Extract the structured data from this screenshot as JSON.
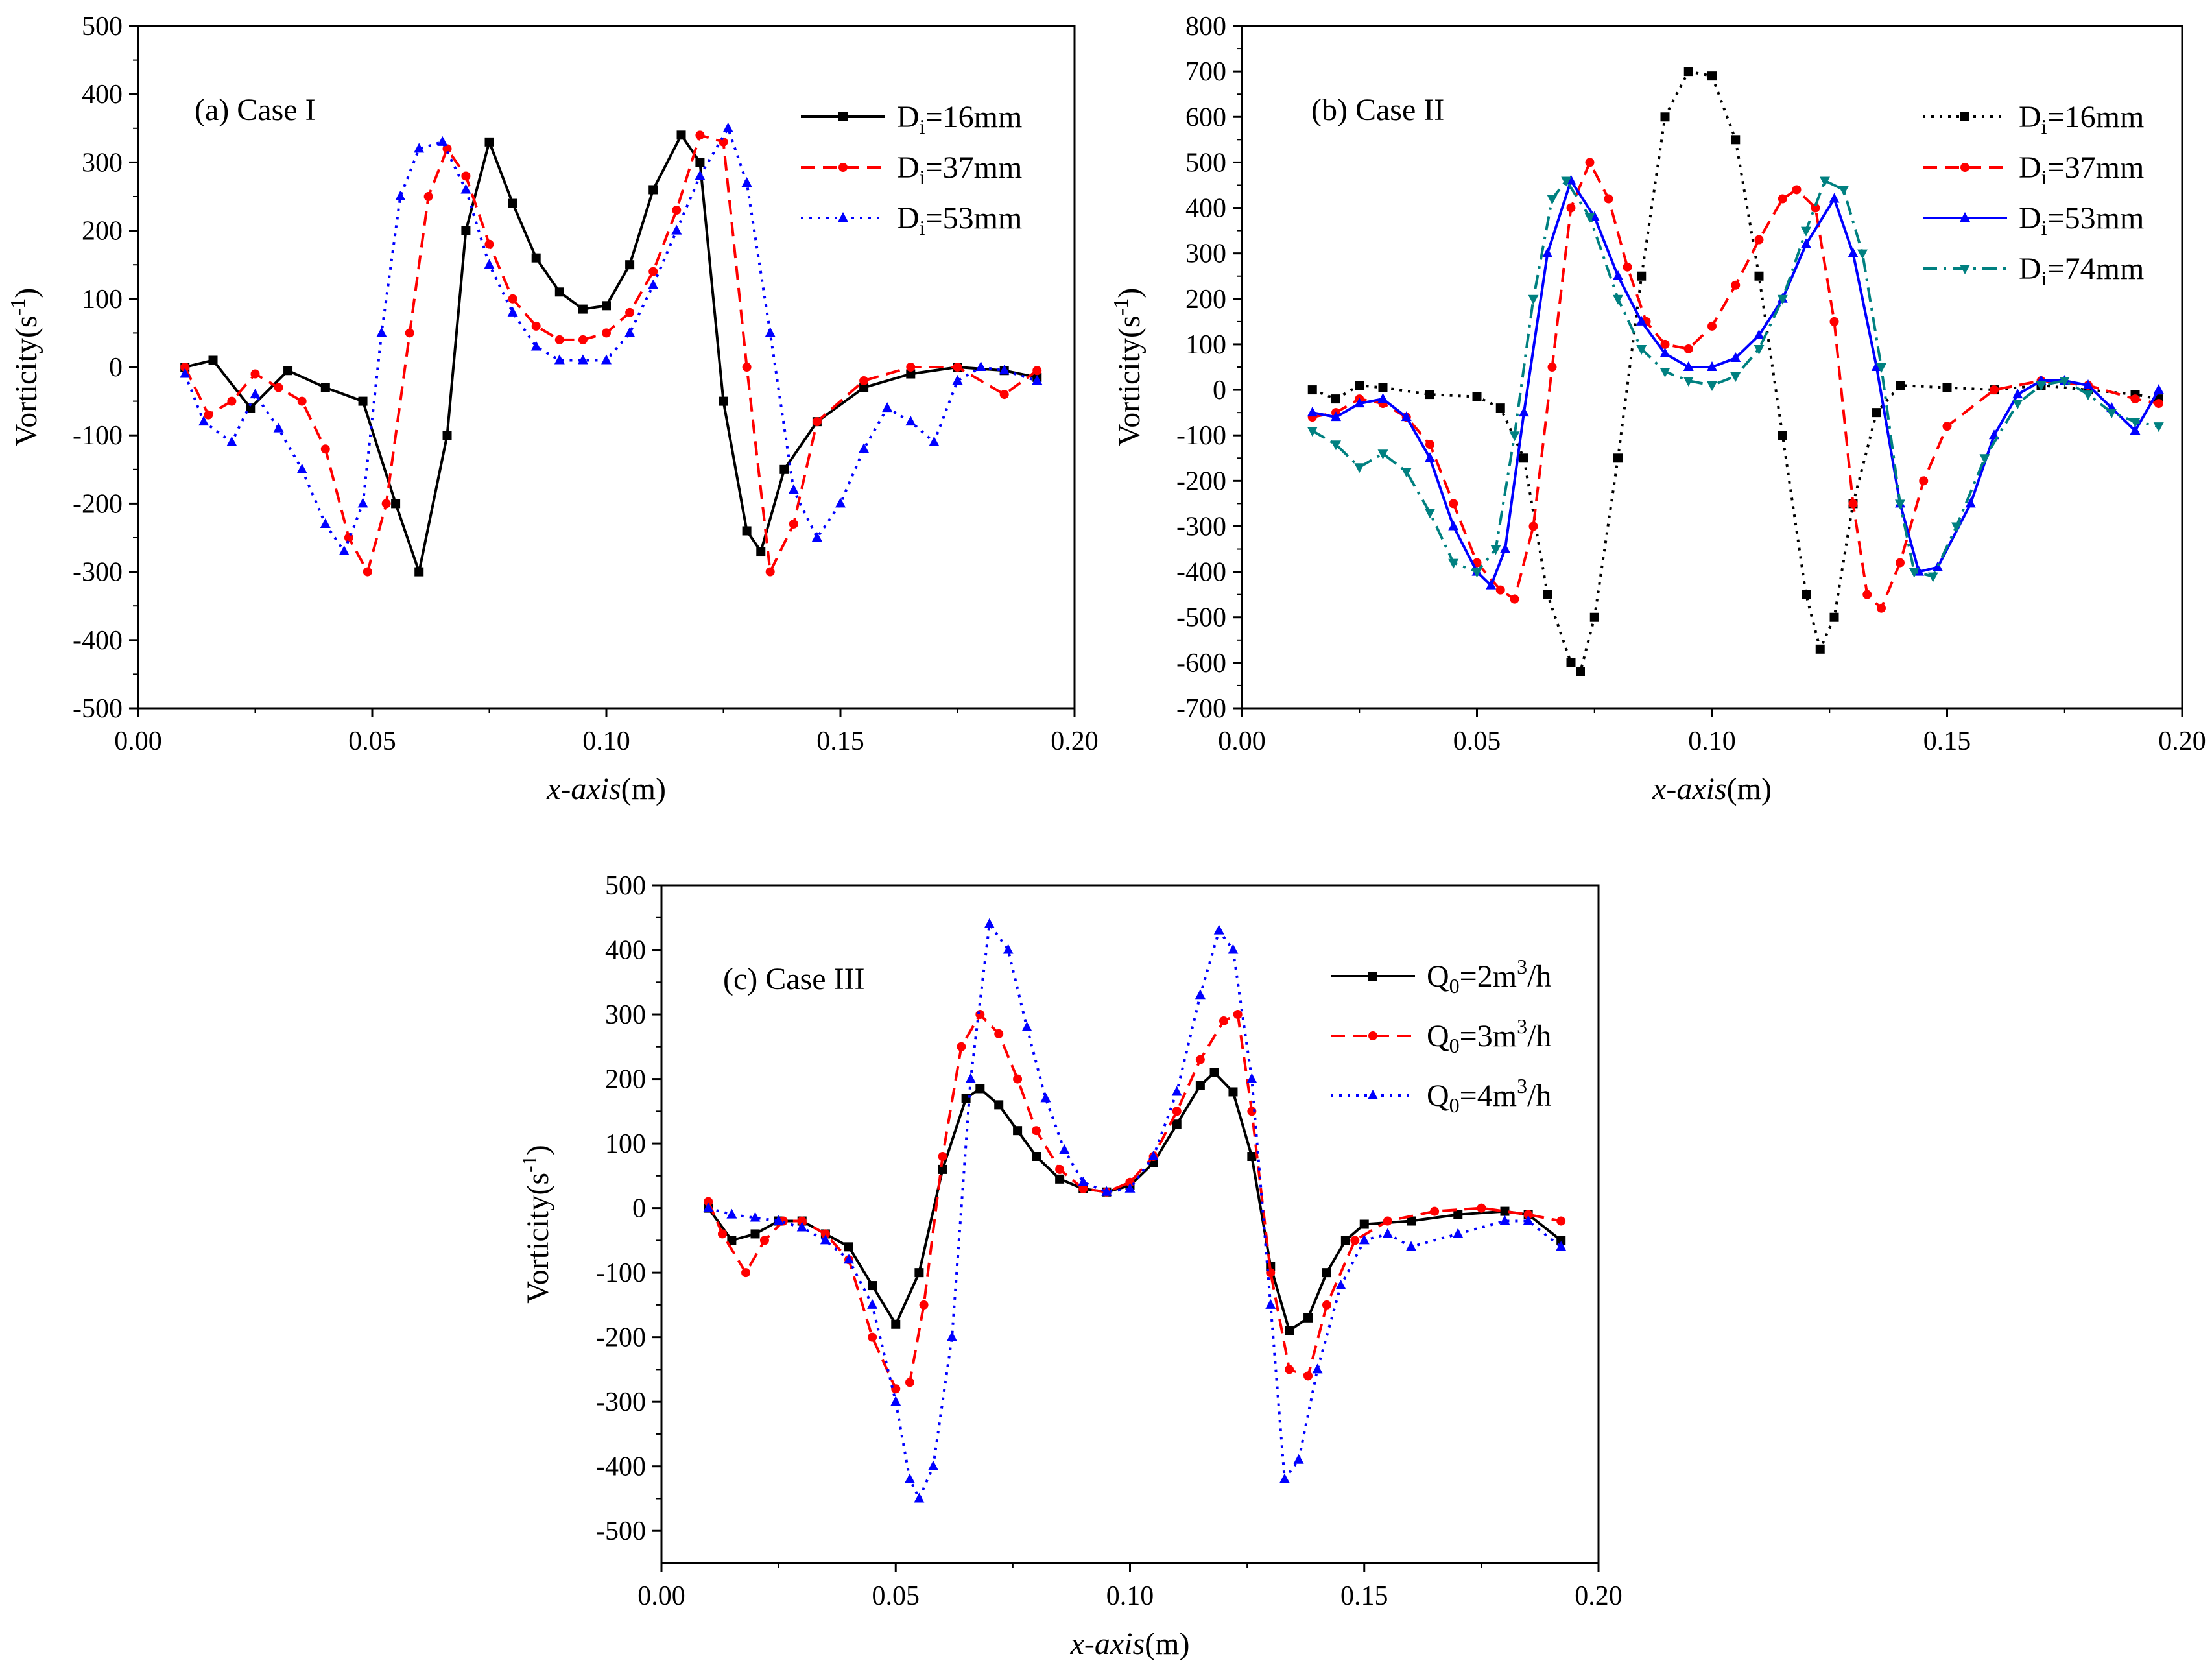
{
  "chart_data": [
    {
      "type": "line",
      "panel": "a",
      "label": "(a) Case I",
      "xlabel_italic": "x-axis",
      "xlabel_unit": "(m)",
      "ylabel": "Vorticity(s",
      "ylabel_sup": "-1",
      "ylabel_close": ")",
      "xlim": [
        0,
        0.2
      ],
      "ylim": [
        -500,
        500
      ],
      "xticks": [
        0,
        0.05,
        0.1,
        0.15,
        0.2
      ],
      "xtick_labels": [
        "0.00",
        "0.05",
        "0.10",
        "0.15",
        "0.20"
      ],
      "yticks": [
        -500,
        -400,
        -300,
        -200,
        -100,
        0,
        100,
        200,
        300,
        400,
        500
      ],
      "ytick_labels": [
        "-500",
        "-400",
        "-300",
        "-200",
        "-100",
        "0",
        "100",
        "200",
        "300",
        "400",
        "500"
      ],
      "legend_position": "top-right",
      "series": [
        {
          "name": "Di=16mm",
          "legend_main": "D",
          "legend_sub": "i",
          "legend_rest": "=16mm",
          "color": "#000000",
          "dash": "solid",
          "marker": "square",
          "x": [
            0.01,
            0.016,
            0.024,
            0.032,
            0.04,
            0.048,
            0.055,
            0.06,
            0.066,
            0.07,
            0.075,
            0.08,
            0.085,
            0.09,
            0.095,
            0.1,
            0.105,
            0.11,
            0.116,
            0.12,
            0.125,
            0.13,
            0.133,
            0.138,
            0.145,
            0.155,
            0.165,
            0.175,
            0.185,
            0.192
          ],
          "y": [
            0,
            10,
            -60,
            -5,
            -30,
            -50,
            -200,
            -300,
            -100,
            200,
            330,
            240,
            160,
            110,
            85,
            90,
            150,
            260,
            340,
            300,
            -50,
            -240,
            -270,
            -150,
            -80,
            -30,
            -10,
            0,
            -5,
            -15
          ]
        },
        {
          "name": "Di=37mm",
          "legend_main": "D",
          "legend_sub": "i",
          "legend_rest": "=37mm",
          "color": "#ff0000",
          "dash": "dash",
          "marker": "circle",
          "x": [
            0.01,
            0.015,
            0.02,
            0.025,
            0.03,
            0.035,
            0.04,
            0.045,
            0.049,
            0.053,
            0.058,
            0.062,
            0.066,
            0.07,
            0.075,
            0.08,
            0.085,
            0.09,
            0.095,
            0.1,
            0.105,
            0.11,
            0.115,
            0.12,
            0.125,
            0.13,
            0.135,
            0.14,
            0.145,
            0.155,
            0.165,
            0.175,
            0.185,
            0.192
          ],
          "y": [
            0,
            -70,
            -50,
            -10,
            -30,
            -50,
            -120,
            -250,
            -300,
            -200,
            50,
            250,
            320,
            280,
            180,
            100,
            60,
            40,
            40,
            50,
            80,
            140,
            230,
            340,
            330,
            0,
            -300,
            -230,
            -80,
            -20,
            0,
            0,
            -40,
            -5
          ]
        },
        {
          "name": "Di=53mm",
          "legend_main": "D",
          "legend_sub": "i",
          "legend_rest": "=53mm",
          "color": "#0000ff",
          "dash": "dot",
          "marker": "triangle",
          "x": [
            0.01,
            0.014,
            0.02,
            0.025,
            0.03,
            0.035,
            0.04,
            0.044,
            0.048,
            0.052,
            0.056,
            0.06,
            0.065,
            0.07,
            0.075,
            0.08,
            0.085,
            0.09,
            0.095,
            0.1,
            0.105,
            0.11,
            0.115,
            0.12,
            0.126,
            0.13,
            0.135,
            0.14,
            0.145,
            0.15,
            0.155,
            0.16,
            0.165,
            0.17,
            0.175,
            0.18,
            0.185,
            0.192
          ],
          "y": [
            -10,
            -80,
            -110,
            -40,
            -90,
            -150,
            -230,
            -270,
            -200,
            50,
            250,
            320,
            330,
            260,
            150,
            80,
            30,
            10,
            10,
            10,
            50,
            120,
            200,
            280,
            350,
            270,
            50,
            -180,
            -250,
            -200,
            -120,
            -60,
            -80,
            -110,
            -20,
            0,
            -5,
            -20
          ]
        }
      ]
    },
    {
      "type": "line",
      "panel": "b",
      "label": "(b) Case II",
      "xlabel_italic": "x-axis",
      "xlabel_unit": "(m)",
      "ylabel": "Vorticity(s",
      "ylabel_sup": "-1",
      "ylabel_close": ")",
      "xlim": [
        0,
        0.2
      ],
      "ylim": [
        -700,
        800
      ],
      "xticks": [
        0,
        0.05,
        0.1,
        0.15,
        0.2
      ],
      "xtick_labels": [
        "0.00",
        "0.05",
        "0.10",
        "0.15",
        "0.20"
      ],
      "yticks": [
        -700,
        -600,
        -500,
        -400,
        -300,
        -200,
        -100,
        0,
        100,
        200,
        300,
        400,
        500,
        600,
        700,
        800
      ],
      "ytick_labels": [
        "-700",
        "-600",
        "-500",
        "-400",
        "-300",
        "-200",
        "-100",
        "0",
        "100",
        "200",
        "300",
        "400",
        "500",
        "600",
        "700",
        "800"
      ],
      "legend_position": "top-right",
      "series": [
        {
          "name": "Di=16mm",
          "legend_main": "D",
          "legend_sub": "i",
          "legend_rest": "=16mm",
          "color": "#000000",
          "dash": "dot",
          "marker": "square",
          "x": [
            0.015,
            0.02,
            0.025,
            0.03,
            0.04,
            0.05,
            0.055,
            0.06,
            0.065,
            0.07,
            0.072,
            0.075,
            0.08,
            0.085,
            0.09,
            0.095,
            0.1,
            0.105,
            0.11,
            0.115,
            0.12,
            0.123,
            0.126,
            0.13,
            0.135,
            0.14,
            0.15,
            0.16,
            0.17,
            0.18,
            0.19,
            0.195
          ],
          "y": [
            0,
            -20,
            10,
            5,
            -10,
            -15,
            -40,
            -150,
            -450,
            -600,
            -620,
            -500,
            -150,
            250,
            600,
            700,
            690,
            550,
            250,
            -100,
            -450,
            -570,
            -500,
            -250,
            -50,
            10,
            5,
            0,
            10,
            0,
            -10,
            -20
          ]
        },
        {
          "name": "Di=37mm",
          "legend_main": "D",
          "legend_sub": "i",
          "legend_rest": "=37mm",
          "color": "#ff0000",
          "dash": "dash",
          "marker": "circle",
          "x": [
            0.015,
            0.02,
            0.025,
            0.03,
            0.035,
            0.04,
            0.045,
            0.05,
            0.055,
            0.058,
            0.062,
            0.066,
            0.07,
            0.074,
            0.078,
            0.082,
            0.086,
            0.09,
            0.095,
            0.1,
            0.105,
            0.11,
            0.115,
            0.118,
            0.122,
            0.126,
            0.13,
            0.133,
            0.136,
            0.14,
            0.145,
            0.15,
            0.16,
            0.17,
            0.18,
            0.19,
            0.195
          ],
          "y": [
            -60,
            -50,
            -20,
            -30,
            -60,
            -120,
            -250,
            -380,
            -440,
            -460,
            -300,
            50,
            400,
            500,
            420,
            270,
            150,
            100,
            90,
            140,
            230,
            330,
            420,
            440,
            400,
            150,
            -250,
            -450,
            -480,
            -380,
            -200,
            -80,
            0,
            20,
            10,
            -20,
            -30
          ]
        },
        {
          "name": "Di=53mm",
          "legend_main": "D",
          "legend_sub": "i",
          "legend_rest": "=53mm",
          "color": "#0000ff",
          "dash": "solid",
          "marker": "triangle",
          "x": [
            0.015,
            0.02,
            0.025,
            0.03,
            0.035,
            0.04,
            0.045,
            0.05,
            0.053,
            0.056,
            0.06,
            0.065,
            0.07,
            0.075,
            0.08,
            0.085,
            0.09,
            0.095,
            0.1,
            0.105,
            0.11,
            0.115,
            0.12,
            0.126,
            0.13,
            0.135,
            0.14,
            0.144,
            0.148,
            0.155,
            0.16,
            0.165,
            0.17,
            0.175,
            0.18,
            0.185,
            0.19,
            0.195
          ],
          "y": [
            -50,
            -60,
            -30,
            -20,
            -60,
            -150,
            -300,
            -400,
            -430,
            -350,
            -50,
            300,
            460,
            380,
            250,
            150,
            80,
            50,
            50,
            70,
            120,
            200,
            320,
            420,
            300,
            50,
            -250,
            -400,
            -390,
            -250,
            -100,
            -10,
            20,
            20,
            10,
            -40,
            -90,
            0
          ]
        },
        {
          "name": "Di=74mm",
          "legend_main": "D",
          "legend_sub": "i",
          "legend_rest": "=74mm",
          "color": "#008080",
          "dash": "dashdot",
          "marker": "triangle-down",
          "x": [
            0.015,
            0.02,
            0.025,
            0.03,
            0.035,
            0.04,
            0.045,
            0.05,
            0.054,
            0.058,
            0.062,
            0.066,
            0.069,
            0.074,
            0.08,
            0.085,
            0.09,
            0.095,
            0.1,
            0.105,
            0.11,
            0.115,
            0.12,
            0.124,
            0.128,
            0.132,
            0.136,
            0.14,
            0.143,
            0.147,
            0.152,
            0.158,
            0.165,
            0.17,
            0.175,
            0.18,
            0.185,
            0.19,
            0.195
          ],
          "y": [
            -90,
            -120,
            -170,
            -140,
            -180,
            -270,
            -380,
            -400,
            -350,
            -100,
            200,
            420,
            460,
            380,
            200,
            90,
            40,
            20,
            10,
            30,
            90,
            200,
            350,
            460,
            440,
            300,
            50,
            -250,
            -400,
            -410,
            -300,
            -150,
            -30,
            10,
            20,
            -10,
            -50,
            -70,
            -80
          ]
        }
      ]
    },
    {
      "type": "line",
      "panel": "c",
      "label": "(c) Case III",
      "xlabel_italic": "x-axis",
      "xlabel_unit": "(m)",
      "ylabel": "Vorticity(s",
      "ylabel_sup": "-1",
      "ylabel_close": ")",
      "xlim": [
        0,
        0.2
      ],
      "ylim": [
        -550,
        500
      ],
      "xticks": [
        0,
        0.05,
        0.1,
        0.15,
        0.2
      ],
      "xtick_labels": [
        "0.00",
        "0.05",
        "0.10",
        "0.15",
        "0.20"
      ],
      "yticks": [
        -500,
        -400,
        -300,
        -200,
        -100,
        0,
        100,
        200,
        300,
        400,
        500
      ],
      "ytick_labels": [
        "-500",
        "-400",
        "-300",
        "-200",
        "-100",
        "0",
        "100",
        "200",
        "300",
        "400",
        "500"
      ],
      "legend_position": "top-right",
      "series": [
        {
          "name": "Q0=2m3/h",
          "legend_main": "Q",
          "legend_sub": "0",
          "legend_rest": "=2m",
          "legend_sup": "3",
          "legend_tail": "/h",
          "color": "#000000",
          "dash": "solid",
          "marker": "square",
          "x": [
            0.01,
            0.015,
            0.02,
            0.025,
            0.03,
            0.035,
            0.04,
            0.045,
            0.05,
            0.055,
            0.06,
            0.065,
            0.068,
            0.072,
            0.076,
            0.08,
            0.085,
            0.09,
            0.095,
            0.1,
            0.105,
            0.11,
            0.115,
            0.118,
            0.122,
            0.126,
            0.13,
            0.134,
            0.138,
            0.142,
            0.146,
            0.15,
            0.16,
            0.17,
            0.18,
            0.185,
            0.192
          ],
          "y": [
            0,
            -50,
            -40,
            -20,
            -20,
            -40,
            -60,
            -120,
            -180,
            -100,
            60,
            170,
            185,
            160,
            120,
            80,
            45,
            30,
            25,
            35,
            70,
            130,
            190,
            210,
            180,
            80,
            -90,
            -190,
            -170,
            -100,
            -50,
            -25,
            -20,
            -10,
            -5,
            -10,
            -50
          ]
        },
        {
          "name": "Q0=3m3/h",
          "legend_main": "Q",
          "legend_sub": "0",
          "legend_rest": "=3m",
          "legend_sup": "3",
          "legend_tail": "/h",
          "color": "#ff0000",
          "dash": "dash",
          "marker": "circle",
          "x": [
            0.01,
            0.013,
            0.018,
            0.022,
            0.026,
            0.03,
            0.035,
            0.04,
            0.045,
            0.05,
            0.053,
            0.056,
            0.06,
            0.064,
            0.068,
            0.072,
            0.076,
            0.08,
            0.085,
            0.09,
            0.095,
            0.1,
            0.105,
            0.11,
            0.115,
            0.12,
            0.123,
            0.126,
            0.13,
            0.134,
            0.138,
            0.142,
            0.148,
            0.155,
            0.165,
            0.175,
            0.185,
            0.192
          ],
          "y": [
            10,
            -40,
            -100,
            -50,
            -20,
            -20,
            -40,
            -80,
            -200,
            -280,
            -270,
            -150,
            80,
            250,
            300,
            270,
            200,
            120,
            60,
            30,
            25,
            40,
            80,
            150,
            230,
            290,
            300,
            150,
            -100,
            -250,
            -260,
            -150,
            -50,
            -20,
            -5,
            0,
            -10,
            -20
          ]
        },
        {
          "name": "Q0=4m3/h",
          "legend_main": "Q",
          "legend_sub": "0",
          "legend_rest": "=4m",
          "legend_sup": "3",
          "legend_tail": "/h",
          "color": "#0000ff",
          "dash": "dot",
          "marker": "triangle",
          "x": [
            0.01,
            0.015,
            0.02,
            0.025,
            0.03,
            0.035,
            0.04,
            0.045,
            0.05,
            0.053,
            0.055,
            0.058,
            0.062,
            0.066,
            0.07,
            0.074,
            0.078,
            0.082,
            0.086,
            0.09,
            0.095,
            0.1,
            0.105,
            0.11,
            0.115,
            0.119,
            0.122,
            0.126,
            0.13,
            0.133,
            0.136,
            0.14,
            0.145,
            0.15,
            0.155,
            0.16,
            0.17,
            0.18,
            0.185,
            0.192
          ],
          "y": [
            0,
            -10,
            -15,
            -20,
            -30,
            -50,
            -80,
            -150,
            -300,
            -420,
            -450,
            -400,
            -200,
            200,
            440,
            400,
            280,
            170,
            90,
            40,
            25,
            30,
            80,
            180,
            330,
            430,
            400,
            200,
            -150,
            -420,
            -390,
            -250,
            -120,
            -50,
            -40,
            -60,
            -40,
            -20,
            -20,
            -60
          ]
        }
      ]
    }
  ]
}
